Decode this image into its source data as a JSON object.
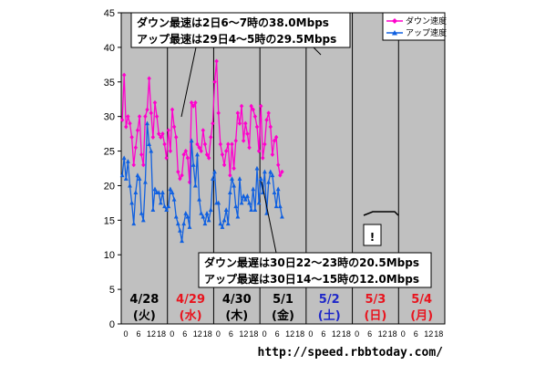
{
  "chart_data": {
    "type": "line",
    "ylim": [
      0,
      45
    ],
    "yticks": [
      0,
      5,
      10,
      15,
      20,
      25,
      30,
      35,
      40,
      45
    ],
    "x_hours_per_day": 24,
    "hour_tick_labels": [
      "0",
      "6",
      "12",
      "18"
    ],
    "grid": "vertical-day-lines",
    "legend_position": "top-right",
    "days": [
      {
        "date": "4/28",
        "weekday": "(火)",
        "color": "#000000"
      },
      {
        "date": "4/29",
        "weekday": "(水)",
        "color": "#e8141e"
      },
      {
        "date": "4/30",
        "weekday": "(木)",
        "color": "#000000"
      },
      {
        "date": "5/1",
        "weekday": "(金)",
        "color": "#000000"
      },
      {
        "date": "5/2",
        "weekday": "(土)",
        "color": "#1f28c8"
      },
      {
        "date": "5/3",
        "weekday": "(日)",
        "color": "#e8141e"
      },
      {
        "date": "5/4",
        "weekday": "(月)",
        "color": "#e8141e"
      }
    ],
    "series": [
      {
        "name": "ダウン速度",
        "color": "#ff00cc",
        "marker": "diamond",
        "values": [
          29.5,
          36.0,
          28.5,
          30.0,
          29.0,
          27.0,
          23.0,
          25.5,
          28.0,
          30.0,
          24.5,
          23.0,
          30.0,
          31.0,
          35.5,
          30.5,
          27.0,
          32.0,
          30.0,
          27.5,
          27.0,
          27.5,
          26.0,
          24.0,
          28.0,
          25.0,
          31.0,
          28.5,
          27.0,
          22.0,
          21.0,
          21.5,
          24.5,
          25.0,
          24.0,
          20.5,
          32.0,
          31.5,
          32.0,
          26.0,
          25.5,
          25.0,
          28.0,
          26.0,
          24.5,
          24.0,
          27.0,
          29.0,
          35.0,
          38.0,
          30.5,
          26.0,
          24.5,
          23.0,
          25.0,
          26.0,
          21.5,
          26.0,
          22.5,
          26.5,
          30.5,
          29.0,
          31.5,
          26.5,
          29.0,
          27.5,
          25.5,
          31.5,
          31.0,
          30.0,
          28.5,
          25.0,
          31.5,
          24.0,
          26.0,
          29.5,
          30.5,
          28.5,
          24.5,
          26.5,
          27.0,
          23.0,
          21.5,
          22.0
        ]
      },
      {
        "name": "アップ速度",
        "color": "#1060e0",
        "marker": "triangle",
        "values": [
          21.5,
          24.0,
          21.0,
          23.5,
          20.0,
          17.5,
          14.5,
          19.0,
          21.5,
          21.0,
          16.0,
          15.0,
          20.5,
          29.0,
          26.0,
          25.0,
          16.5,
          19.5,
          19.0,
          19.0,
          17.5,
          19.0,
          17.0,
          16.5,
          17.0,
          19.5,
          19.0,
          18.0,
          15.5,
          14.5,
          13.5,
          12.0,
          14.5,
          16.0,
          15.5,
          14.0,
          26.5,
          23.0,
          20.0,
          24.5,
          18.0,
          16.0,
          15.5,
          14.5,
          16.0,
          15.0,
          16.5,
          21.0,
          22.0,
          17.5,
          17.5,
          14.5,
          14.0,
          15.0,
          16.5,
          14.5,
          19.0,
          21.0,
          20.0,
          17.0,
          15.5,
          21.0,
          17.5,
          18.5,
          18.0,
          18.5,
          17.5,
          16.5,
          19.5,
          16.5,
          22.5,
          17.5,
          21.0,
          19.0,
          22.0,
          16.0,
          20.5,
          22.0,
          21.5,
          19.0,
          17.0,
          19.5,
          17.0,
          15.5
        ]
      }
    ],
    "annotations": {
      "top_line1": "ダウン最速は2日6～7時の38.0Mbps",
      "top_line2": "アップ最速は29日4～5時の29.5Mbps",
      "bottom_line1": "ダウン最遅は30日22～23時の20.5Mbps",
      "bottom_line2": "アップ最遅は30日14～15時の12.0Mbps",
      "exclaim": "!"
    }
  },
  "footer": {
    "url": "http://speed.rbbtoday.com/"
  }
}
